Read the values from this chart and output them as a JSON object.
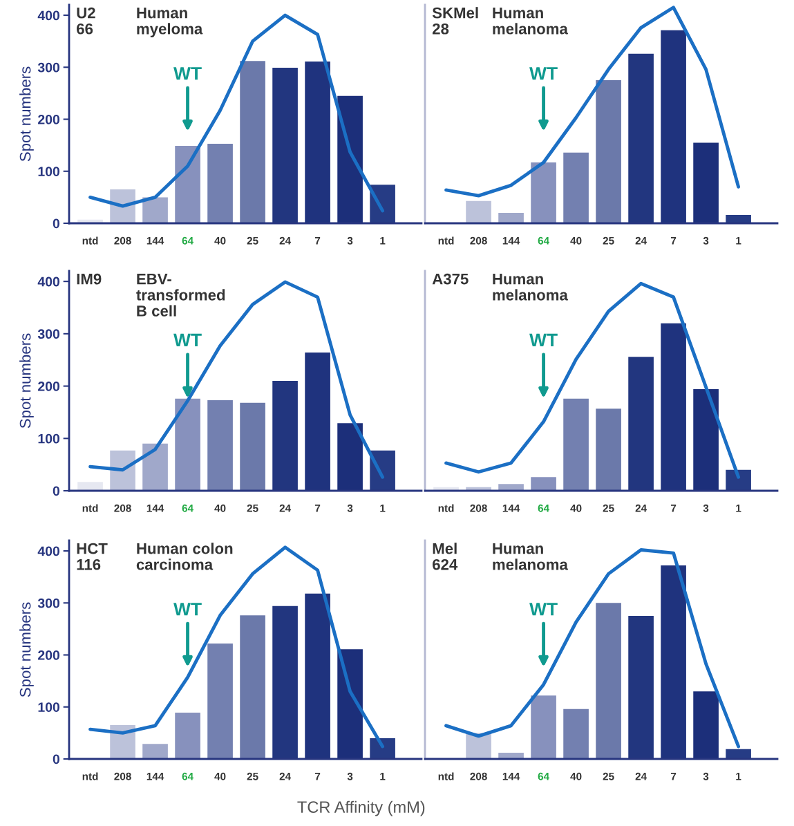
{
  "chart_data": [
    {
      "type": "bar",
      "categories": [
        "ntd",
        "208",
        "144",
        "64",
        "40",
        "25",
        "24",
        "7",
        "3",
        "1"
      ],
      "ylabel": "Spot numbers",
      "ylim": [
        0,
        420
      ],
      "yticks": [
        0,
        100,
        200,
        300,
        400
      ],
      "grid": false,
      "legend": false,
      "annotations": [
        "U2\n66",
        "Human\nmyeloma",
        {
          "text": "WT",
          "x": "64"
        }
      ],
      "series": [
        {
          "colors": [
            "#e6e8f1",
            "#bcc2da",
            "#a0a8ca",
            "#8791bd",
            "#7380b0",
            "#6b79aa",
            "#22367f",
            "#1f337e",
            "#1c2f7a",
            "#263c85"
          ],
          "values": [
            7,
            65,
            50,
            149,
            153,
            312,
            299,
            311,
            245,
            74
          ]
        },
        {
          "type": "line",
          "color": "#1b6fc4",
          "values": [
            50,
            33,
            50,
            110,
            217,
            350,
            400,
            363,
            137,
            24
          ]
        }
      ]
    },
    {
      "type": "bar",
      "categories": [
        "ntd",
        "208",
        "144",
        "64",
        "40",
        "25",
        "24",
        "7",
        "3",
        "1"
      ],
      "ylim": [
        0,
        420
      ],
      "yticks": [
        0,
        100,
        200,
        300,
        400
      ],
      "tick_labels": "x",
      "grid": false,
      "legend": false,
      "annotations": [
        "SKMel\n28",
        "Human\nmelanoma",
        {
          "text": "WT",
          "x": "64"
        }
      ],
      "series": [
        {
          "colors": [
            "#e6e8f1",
            "#bcc2da",
            "#a0a8ca",
            "#8791bd",
            "#7380b0",
            "#6b79aa",
            "#22367f",
            "#1f337e",
            "#1c2f7a",
            "#263c85"
          ],
          "values": [
            null,
            43,
            20,
            117,
            136,
            275,
            326,
            371,
            155,
            16
          ]
        },
        {
          "type": "line",
          "color": "#1b6fc4",
          "values": [
            64,
            53,
            73,
            117,
            203,
            296,
            376,
            415,
            296,
            70
          ]
        }
      ]
    },
    {
      "type": "bar",
      "categories": [
        "ntd",
        "208",
        "144",
        "64",
        "40",
        "25",
        "24",
        "7",
        "3",
        "1"
      ],
      "ylabel": "Spot numbers",
      "ylim": [
        0,
        420
      ],
      "yticks": [
        0,
        100,
        200,
        300,
        400
      ],
      "grid": false,
      "legend": false,
      "annotations": [
        "IM9",
        "EBV-\ntransformed\nB cell",
        {
          "text": "WT",
          "x": "64"
        }
      ],
      "series": [
        {
          "colors": [
            "#e6e8f1",
            "#bcc2da",
            "#a0a8ca",
            "#8791bd",
            "#7380b0",
            "#6b79aa",
            "#22367f",
            "#1f337e",
            "#1c2f7a",
            "#263c85"
          ],
          "values": [
            17,
            77,
            90,
            176,
            173,
            168,
            210,
            264,
            129,
            77
          ]
        },
        {
          "type": "line",
          "color": "#1b6fc4",
          "values": [
            46,
            40,
            79,
            172,
            277,
            356,
            399,
            370,
            145,
            26
          ]
        }
      ]
    },
    {
      "type": "bar",
      "categories": [
        "ntd",
        "208",
        "144",
        "64",
        "40",
        "25",
        "24",
        "7",
        "3",
        "1"
      ],
      "ylim": [
        0,
        420
      ],
      "yticks": [
        0,
        100,
        200,
        300,
        400
      ],
      "tick_labels": "x",
      "grid": false,
      "legend": false,
      "annotations": [
        "A375",
        "Human\nmelanoma",
        {
          "text": "WT",
          "x": "64"
        }
      ],
      "series": [
        {
          "colors": [
            "#e6e8f1",
            "#bcc2da",
            "#a0a8ca",
            "#8791bd",
            "#7380b0",
            "#6b79aa",
            "#22367f",
            "#1f337e",
            "#1c2f7a",
            "#263c85"
          ],
          "values": [
            7,
            7,
            13,
            26,
            176,
            157,
            256,
            320,
            194,
            40
          ]
        },
        {
          "type": "line",
          "color": "#1b6fc4",
          "values": [
            53,
            36,
            53,
            132,
            251,
            343,
            396,
            370,
            198,
            26
          ]
        }
      ]
    },
    {
      "type": "bar",
      "categories": [
        "ntd",
        "208",
        "144",
        "64",
        "40",
        "25",
        "24",
        "7",
        "3",
        "1"
      ],
      "ylabel": "Spot numbers",
      "xlabel": "TCR Affinity (mM)",
      "ylim": [
        0,
        420
      ],
      "yticks": [
        0,
        100,
        200,
        300,
        400
      ],
      "grid": false,
      "legend": false,
      "annotations": [
        "HCT\n116",
        "Human colon\ncarcinoma",
        {
          "text": "WT",
          "x": "64"
        }
      ],
      "series": [
        {
          "colors": [
            "#e6e8f1",
            "#bcc2da",
            "#a0a8ca",
            "#8791bd",
            "#7380b0",
            "#6b79aa",
            "#22367f",
            "#1f337e",
            "#1c2f7a",
            "#263c85"
          ],
          "values": [
            1,
            65,
            29,
            89,
            222,
            276,
            294,
            318,
            211,
            40
          ]
        },
        {
          "type": "line",
          "color": "#1b6fc4",
          "values": [
            57,
            50,
            64,
            157,
            276,
            356,
            407,
            363,
            130,
            24
          ]
        }
      ]
    },
    {
      "type": "bar",
      "categories": [
        "ntd",
        "208",
        "144",
        "64",
        "40",
        "25",
        "24",
        "7",
        "3",
        "1"
      ],
      "ylim": [
        0,
        420
      ],
      "yticks": [
        0,
        100,
        200,
        300,
        400
      ],
      "tick_labels": "x",
      "grid": false,
      "legend": false,
      "annotations": [
        "Mel\n624",
        "Human\nmelanoma",
        {
          "text": "WT",
          "x": "64"
        }
      ],
      "series": [
        {
          "colors": [
            "#e6e8f1",
            "#bcc2da",
            "#a0a8ca",
            "#8791bd",
            "#7380b0",
            "#6b79aa",
            "#22367f",
            "#1f337e",
            "#1c2f7a",
            "#263c85"
          ],
          "values": [
            0,
            50,
            12,
            122,
            96,
            300,
            275,
            372,
            130,
            19
          ]
        },
        {
          "type": "line",
          "color": "#1b6fc4",
          "values": [
            64,
            44,
            64,
            143,
            263,
            356,
            402,
            396,
            183,
            24
          ]
        }
      ]
    }
  ]
}
